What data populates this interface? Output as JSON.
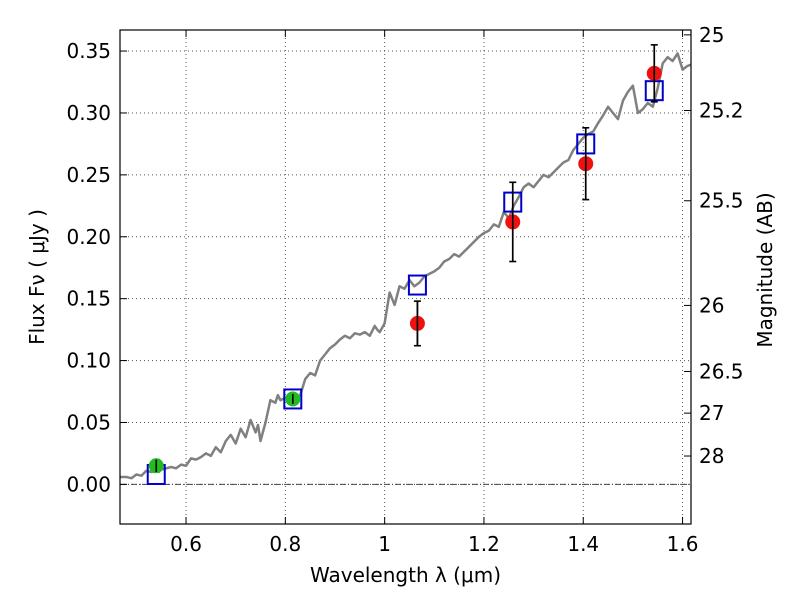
{
  "chart_data": {
    "type": "scatter",
    "xlabel": "Wavelength  λ (μm)",
    "ylabel": "Flux  Fν  ( μJy )",
    "y2label": "Magnitude (AB)",
    "xlim": [
      0.467,
      1.617
    ],
    "ylim": [
      -0.032,
      0.367
    ],
    "grid": true,
    "x_ticks": [
      0.6,
      0.8,
      1.0,
      1.2,
      1.4,
      1.6
    ],
    "x_tick_labels": [
      "0.6",
      "0.8",
      "1",
      "1.2",
      "1.4",
      "1.6"
    ],
    "y_ticks": [
      0.0,
      0.05,
      0.1,
      0.15,
      0.2,
      0.25,
      0.3,
      0.35
    ],
    "y_tick_labels": [
      "0.00",
      "0.05",
      "0.10",
      "0.15",
      "0.20",
      "0.25",
      "0.30",
      "0.35"
    ],
    "mag_ticks": [
      {
        "mag": 25,
        "label": "25"
      },
      {
        "mag": 25.2,
        "label": "25.2"
      },
      {
        "mag": 25.5,
        "label": "25.5"
      },
      {
        "mag": 26,
        "label": "26"
      },
      {
        "mag": 26.5,
        "label": "26.5"
      },
      {
        "mag": 27,
        "label": "27"
      },
      {
        "mag": 28,
        "label": "28"
      }
    ],
    "colors": {
      "model": "#808080",
      "model_boxes": "#0000cc",
      "red_points": "#ee1111",
      "green_points": "#22bb22",
      "errorbar": "#000000",
      "grid": "#555555"
    },
    "series": [
      {
        "kind": "line",
        "x": [
          0.467,
          0.48,
          0.49,
          0.5,
          0.51,
          0.52,
          0.53,
          0.54,
          0.55,
          0.56,
          0.57,
          0.58,
          0.59,
          0.6,
          0.61,
          0.62,
          0.63,
          0.64,
          0.65,
          0.66,
          0.67,
          0.68,
          0.69,
          0.7,
          0.71,
          0.72,
          0.73,
          0.74,
          0.745,
          0.75,
          0.76,
          0.77,
          0.78,
          0.785,
          0.79,
          0.8,
          0.81,
          0.82,
          0.83,
          0.84,
          0.85,
          0.86,
          0.87,
          0.88,
          0.89,
          0.9,
          0.91,
          0.92,
          0.93,
          0.94,
          0.95,
          0.96,
          0.97,
          0.98,
          0.985,
          0.99,
          1.0,
          1.01,
          1.02,
          1.03,
          1.04,
          1.05,
          1.06,
          1.07,
          1.08,
          1.09,
          1.1,
          1.11,
          1.12,
          1.13,
          1.14,
          1.15,
          1.16,
          1.17,
          1.18,
          1.19,
          1.2,
          1.21,
          1.22,
          1.23,
          1.24,
          1.25,
          1.26,
          1.27,
          1.28,
          1.29,
          1.3,
          1.31,
          1.32,
          1.33,
          1.34,
          1.35,
          1.36,
          1.37,
          1.38,
          1.39,
          1.4,
          1.41,
          1.42,
          1.43,
          1.44,
          1.45,
          1.46,
          1.47,
          1.48,
          1.49,
          1.5,
          1.51,
          1.52,
          1.53,
          1.54,
          1.55,
          1.56,
          1.57,
          1.58,
          1.59,
          1.6,
          1.61,
          1.617
        ],
        "y": [
          0.006,
          0.006,
          0.005,
          0.008,
          0.007,
          0.011,
          0.01,
          0.012,
          0.012,
          0.013,
          0.014,
          0.013,
          0.016,
          0.015,
          0.021,
          0.02,
          0.022,
          0.025,
          0.023,
          0.03,
          0.026,
          0.035,
          0.04,
          0.033,
          0.045,
          0.038,
          0.052,
          0.042,
          0.048,
          0.035,
          0.05,
          0.068,
          0.066,
          0.072,
          0.068,
          0.07,
          0.07,
          0.068,
          0.072,
          0.085,
          0.09,
          0.088,
          0.1,
          0.105,
          0.11,
          0.113,
          0.117,
          0.12,
          0.118,
          0.122,
          0.121,
          0.123,
          0.12,
          0.128,
          0.125,
          0.123,
          0.13,
          0.155,
          0.145,
          0.16,
          0.158,
          0.165,
          0.16,
          0.163,
          0.168,
          0.17,
          0.172,
          0.175,
          0.18,
          0.182,
          0.186,
          0.184,
          0.188,
          0.192,
          0.196,
          0.2,
          0.203,
          0.205,
          0.21,
          0.208,
          0.22,
          0.215,
          0.225,
          0.232,
          0.24,
          0.243,
          0.24,
          0.245,
          0.25,
          0.248,
          0.252,
          0.256,
          0.26,
          0.262,
          0.27,
          0.275,
          0.28,
          0.283,
          0.285,
          0.292,
          0.298,
          0.305,
          0.3,
          0.295,
          0.31,
          0.317,
          0.322,
          0.3,
          0.303,
          0.308,
          0.305,
          0.32,
          0.34,
          0.345,
          0.342,
          0.348,
          0.335,
          0.338,
          0.339
        ]
      },
      {
        "kind": "box",
        "x": [
          0.54,
          0.815,
          1.066,
          1.258,
          1.405,
          1.543
        ],
        "y": [
          0.008,
          0.069,
          0.161,
          0.228,
          0.275,
          0.318
        ]
      },
      {
        "kind": "point_errorbar",
        "x": [
          0.54,
          0.815
        ],
        "y": [
          0.015,
          0.069
        ],
        "yerr": [
          0.005,
          0.004
        ]
      },
      {
        "kind": "point_errorbar",
        "x": [
          1.066,
          1.258,
          1.405,
          1.543
        ],
        "y": [
          0.13,
          0.212,
          0.259,
          0.332
        ],
        "yerr": [
          0.018,
          0.032,
          0.029,
          0.023
        ]
      }
    ]
  }
}
